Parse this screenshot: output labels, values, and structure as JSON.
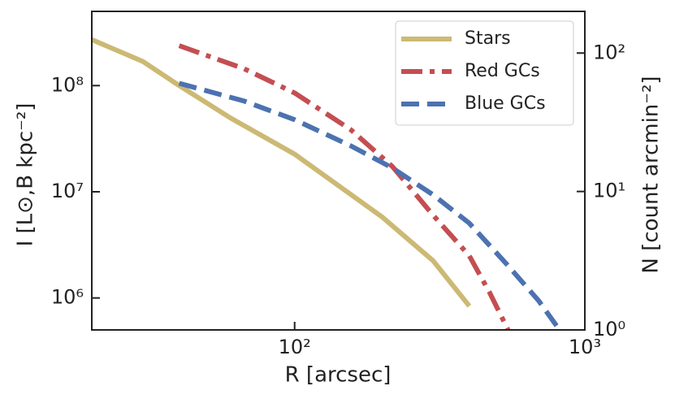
{
  "chart_data": {
    "type": "line",
    "xlabel": "R [arcsec]",
    "ylabel": "I  [L⊙,B kpc⁻²]",
    "y2label": "N  [count arcmin⁻²]",
    "xscale": "log",
    "yscale": "log",
    "y2scale": "log",
    "xlim": [
      20,
      1000
    ],
    "ylim": [
      500000,
      500000000
    ],
    "y2lim": [
      1,
      200
    ],
    "xticks": [
      {
        "value": 100,
        "label": "10²"
      },
      {
        "value": 1000,
        "label": "10³"
      }
    ],
    "yticks": [
      {
        "value": 1000000,
        "label": "10⁶"
      },
      {
        "value": 10000000,
        "label": "10⁷"
      },
      {
        "value": 100000000,
        "label": "10⁸"
      }
    ],
    "y2ticks": [
      {
        "value": 1,
        "label": "10⁰"
      },
      {
        "value": 10,
        "label": "10¹"
      },
      {
        "value": 100,
        "label": "10²"
      }
    ],
    "legend": "upper right",
    "series": [
      {
        "name": "Stars",
        "color": "#ccb974",
        "dash": "solid",
        "axis": "y",
        "x": [
          20,
          30,
          40,
          60,
          100,
          200,
          300,
          400
        ],
        "values": [
          271000000,
          169000000,
          100000000,
          49700000,
          22600000,
          5800000,
          2240000,
          840000
        ]
      },
      {
        "name": "Red GCs",
        "color": "#c44e52",
        "dash": "dashdot",
        "axis": "y2",
        "x": [
          40,
          67,
          100,
          156,
          217,
          299,
          400,
          470,
          544
        ],
        "values": [
          113,
          77,
          51.5,
          28,
          15.2,
          6.8,
          3.43,
          1.86,
          1.0
        ]
      },
      {
        "name": "Blue GCs",
        "color": "#4c72b0",
        "dash": "dashed",
        "axis": "y2",
        "x": [
          40,
          67,
          100,
          156,
          217,
          299,
          400,
          537,
          694,
          818
        ],
        "values": [
          60.5,
          45,
          33,
          21.4,
          14.8,
          9.5,
          5.9,
          3.0,
          1.62,
          1.0
        ]
      }
    ]
  }
}
